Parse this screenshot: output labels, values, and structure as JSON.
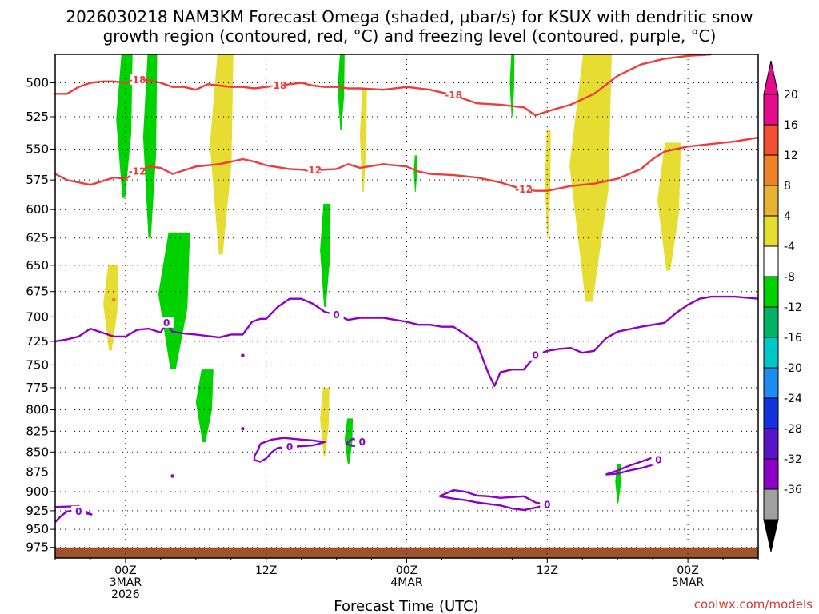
{
  "title_line1": "2026030218 NAM3KM Forecast Omega (shaded, μbar/s) for KSUX with dendritic snow",
  "title_line2": "growth region (contoured, red, °C) and freezing level (contoured, purple, °C)",
  "credit": "coolwx.com/models",
  "chart_data": {
    "type": "heatmap",
    "xlabel": "Forecast Time (UTC)",
    "x_range_hours": [
      -6,
      54
    ],
    "x_ticks": [
      {
        "hour": 0,
        "lines": [
          "00Z",
          "3MAR",
          "2026"
        ]
      },
      {
        "hour": 12,
        "lines": [
          "12Z"
        ]
      },
      {
        "hour": 24,
        "lines": [
          "00Z",
          "4MAR"
        ]
      },
      {
        "hour": 36,
        "lines": [
          "12Z"
        ]
      },
      {
        "hour": 48,
        "lines": [
          "00Z",
          "5MAR"
        ]
      }
    ],
    "y_range_mb": [
      480,
      990
    ],
    "y_log_scale": true,
    "y_ticks": [
      500,
      525,
      550,
      575,
      600,
      625,
      650,
      675,
      700,
      725,
      750,
      775,
      800,
      825,
      850,
      875,
      900,
      925,
      950,
      975
    ],
    "grid": "dotted",
    "colorbar": {
      "units": "μbar/s",
      "labels": [
        "20",
        "16",
        "12",
        "8",
        "4",
        "-4",
        "-8",
        "-12",
        "-16",
        "-20",
        "-24",
        "-28",
        "-32",
        "-36"
      ],
      "bins": [
        {
          "from": -36,
          "to": -32,
          "color": "#a0a0a0"
        },
        {
          "from": -32,
          "to": -28,
          "color": "#8c00c8"
        },
        {
          "from": -28,
          "to": -24,
          "color": "#5a14c8"
        },
        {
          "from": -24,
          "to": -20,
          "color": "#1432dc"
        },
        {
          "from": -20,
          "to": -16,
          "color": "#1e8cf0"
        },
        {
          "from": -16,
          "to": -12,
          "color": "#00c8c8"
        },
        {
          "from": -12,
          "to": -8,
          "color": "#00b464"
        },
        {
          "from": -8,
          "to": -4,
          "color": "#00d200"
        },
        {
          "from": -4,
          "to": 4,
          "color": "#ffffff"
        },
        {
          "from": 4,
          "to": 8,
          "color": "#e6dc32"
        },
        {
          "from": 8,
          "to": 12,
          "color": "#e6b432"
        },
        {
          "from": 12,
          "to": 16,
          "color": "#f08228"
        },
        {
          "from": 16,
          "to": 20,
          "color": "#f05032"
        },
        {
          "from": 20,
          "to": 24,
          "color": "#e60a8c"
        }
      ],
      "over_color": "#e60a8c",
      "under_color": "#000000"
    },
    "omega_regions": [
      {
        "sign": "negative",
        "color": "#00d200",
        "hours": [
          -0.8,
          0.6
        ],
        "mb": [
          480,
          590
        ]
      },
      {
        "sign": "negative",
        "color": "#00d200",
        "hours": [
          1.5,
          2.7
        ],
        "mb": [
          480,
          625
        ]
      },
      {
        "sign": "negative",
        "color": "#00d200",
        "hours": [
          2.8,
          5.5
        ],
        "mb": [
          620,
          755
        ]
      },
      {
        "sign": "negative",
        "color": "#00d200",
        "hours": [
          6.0,
          7.5
        ],
        "mb": [
          755,
          838
        ]
      },
      {
        "sign": "negative",
        "color": "#00d200",
        "hours": [
          16.6,
          17.5
        ],
        "mb": [
          595,
          690
        ]
      },
      {
        "sign": "negative",
        "color": "#00d200",
        "hours": [
          18.1,
          18.7
        ],
        "mb": [
          480,
          535
        ]
      },
      {
        "sign": "negative",
        "color": "#00d200",
        "hours": [
          18.7,
          19.4
        ],
        "mb": [
          810,
          865
        ]
      },
      {
        "sign": "negative",
        "color": "#00d200",
        "hours": [
          24.6,
          24.9
        ],
        "mb": [
          555,
          585
        ]
      },
      {
        "sign": "negative",
        "color": "#00d200",
        "hours": [
          32.8,
          33.2
        ],
        "mb": [
          480,
          525
        ]
      },
      {
        "sign": "negative",
        "color": "#00d200",
        "hours": [
          41.8,
          42.3
        ],
        "mb": [
          865,
          915
        ]
      },
      {
        "sign": "positive",
        "color": "#e6dc32",
        "hours": [
          -1.9,
          -0.6
        ],
        "mb": [
          650,
          735
        ]
      },
      {
        "sign": "positive",
        "color": "#e6dc32",
        "hours": [
          7.2,
          9.2
        ],
        "mb": [
          480,
          640
        ]
      },
      {
        "sign": "positive",
        "color": "#e6dc32",
        "hours": [
          16.6,
          17.4
        ],
        "mb": [
          775,
          855
        ]
      },
      {
        "sign": "positive",
        "color": "#e6dc32",
        "hours": [
          20.0,
          20.6
        ],
        "mb": [
          505,
          585
        ]
      },
      {
        "sign": "positive",
        "color": "#e6dc32",
        "hours": [
          35.8,
          36.3
        ],
        "mb": [
          535,
          625
        ]
      },
      {
        "sign": "positive",
        "color": "#e6dc32",
        "hours": [
          37.9,
          41.5
        ],
        "mb": [
          480,
          685
        ]
      },
      {
        "sign": "positive",
        "color": "#e6dc32",
        "hours": [
          45.4,
          47.4
        ],
        "mb": [
          545,
          655
        ]
      }
    ],
    "contours": [
      {
        "label": "-18",
        "color": "#ee3b3b",
        "group": "dgz",
        "points": [
          [
            -6,
            508
          ],
          [
            -5,
            508
          ],
          [
            -4,
            503
          ],
          [
            -3,
            500
          ],
          [
            -2,
            499
          ],
          [
            -1,
            499
          ],
          [
            0,
            500
          ],
          [
            1,
            498
          ],
          [
            2,
            498
          ],
          [
            3,
            500
          ],
          [
            4,
            503
          ],
          [
            5,
            503
          ],
          [
            6,
            505
          ],
          [
            7,
            501
          ],
          [
            8,
            502
          ],
          [
            9,
            503
          ],
          [
            10,
            503
          ],
          [
            11,
            504
          ],
          [
            12,
            503
          ],
          [
            13,
            502
          ],
          [
            14,
            501
          ],
          [
            15,
            500
          ],
          [
            16,
            502
          ],
          [
            17,
            503
          ],
          [
            18,
            503
          ],
          [
            19,
            504
          ],
          [
            20,
            504
          ],
          [
            22,
            505
          ],
          [
            24,
            503
          ],
          [
            26,
            505
          ],
          [
            28,
            509
          ],
          [
            30,
            515
          ],
          [
            32,
            516
          ],
          [
            34,
            518
          ],
          [
            35,
            524
          ],
          [
            36,
            521
          ],
          [
            38,
            516
          ],
          [
            40,
            508
          ],
          [
            42,
            495
          ],
          [
            44,
            487
          ],
          [
            46,
            483
          ],
          [
            48,
            481
          ],
          [
            50,
            480
          ]
        ]
      },
      {
        "label": "-12",
        "color": "#ee3b3b",
        "group": "dgz",
        "points": [
          [
            -6,
            570
          ],
          [
            -5,
            575
          ],
          [
            -4,
            577
          ],
          [
            -3,
            579
          ],
          [
            -2,
            576
          ],
          [
            -1,
            573
          ],
          [
            0,
            574
          ],
          [
            1,
            568
          ],
          [
            2,
            564
          ],
          [
            3,
            565
          ],
          [
            4,
            570
          ],
          [
            5,
            567
          ],
          [
            6,
            564
          ],
          [
            8,
            562
          ],
          [
            9,
            560
          ],
          [
            10,
            558
          ],
          [
            11,
            560
          ],
          [
            12,
            563
          ],
          [
            14,
            566
          ],
          [
            16,
            567
          ],
          [
            18,
            566
          ],
          [
            19,
            562
          ],
          [
            20,
            565
          ],
          [
            22,
            562
          ],
          [
            24,
            564
          ],
          [
            25,
            568
          ],
          [
            26,
            570
          ],
          [
            28,
            571
          ],
          [
            30,
            573
          ],
          [
            32,
            577
          ],
          [
            34,
            583
          ],
          [
            35,
            584
          ],
          [
            36,
            584
          ],
          [
            38,
            580
          ],
          [
            40,
            578
          ],
          [
            42,
            574
          ],
          [
            44,
            566
          ],
          [
            45,
            558
          ],
          [
            46,
            552
          ],
          [
            48,
            548
          ],
          [
            50,
            546
          ],
          [
            52,
            544
          ],
          [
            54,
            541
          ]
        ]
      },
      {
        "label": "0",
        "color": "#8c00c8",
        "group": "freezing",
        "points": [
          [
            -6,
            725
          ],
          [
            -5,
            723
          ],
          [
            -4,
            720
          ],
          [
            -3,
            712
          ],
          [
            -2,
            716
          ],
          [
            -1,
            720
          ],
          [
            0,
            720
          ],
          [
            1,
            713
          ],
          [
            2,
            712
          ],
          [
            3,
            716
          ],
          [
            3.5,
            706
          ],
          [
            4,
            715
          ],
          [
            5,
            717
          ],
          [
            6,
            718
          ],
          [
            8,
            721
          ],
          [
            9,
            718
          ],
          [
            10,
            718
          ],
          [
            10.8,
            705
          ],
          [
            11.5,
            702
          ],
          [
            12,
            702
          ],
          [
            13,
            690
          ],
          [
            14,
            682
          ],
          [
            15,
            682
          ],
          [
            16,
            687
          ],
          [
            17,
            695
          ],
          [
            18,
            698
          ],
          [
            19,
            703
          ],
          [
            20,
            701
          ],
          [
            22,
            701
          ],
          [
            24,
            705
          ],
          [
            25,
            708
          ],
          [
            26,
            708
          ],
          [
            27,
            710
          ],
          [
            28,
            710
          ],
          [
            29,
            718
          ],
          [
            30,
            727
          ],
          [
            31,
            760
          ],
          [
            31.5,
            773
          ],
          [
            32,
            758
          ],
          [
            33,
            755
          ],
          [
            34,
            755
          ],
          [
            35,
            740
          ],
          [
            36,
            735
          ],
          [
            37,
            733
          ],
          [
            38,
            732
          ],
          [
            39,
            737
          ],
          [
            40,
            735
          ],
          [
            41,
            722
          ],
          [
            42,
            715
          ],
          [
            44,
            710
          ],
          [
            46,
            706
          ],
          [
            47,
            696
          ],
          [
            48,
            688
          ],
          [
            49,
            682
          ],
          [
            50,
            680
          ],
          [
            52,
            680
          ],
          [
            54,
            682
          ]
        ]
      },
      {
        "label": "0",
        "color": "#8c00c8",
        "group": "freezing",
        "points": [
          [
            11.5,
            840
          ],
          [
            12.5,
            835
          ],
          [
            13.5,
            833
          ],
          [
            15,
            835
          ],
          [
            16,
            836
          ],
          [
            17,
            838
          ],
          [
            16,
            842
          ],
          [
            15,
            843
          ],
          [
            14,
            844
          ],
          [
            13,
            845
          ],
          [
            12.5,
            850
          ],
          [
            12,
            858
          ],
          [
            11.5,
            862
          ],
          [
            11,
            860
          ],
          [
            11,
            855
          ],
          [
            11.3,
            848
          ],
          [
            11.5,
            840
          ]
        ]
      },
      {
        "label": "0",
        "color": "#8c00c8",
        "group": "freezing",
        "points": [
          [
            18.8,
            840
          ],
          [
            19.4,
            834
          ],
          [
            20.2,
            838
          ],
          [
            19.5,
            843
          ],
          [
            18.8,
            840
          ]
        ]
      },
      {
        "label": "0",
        "color": "#8c00c8",
        "group": "freezing",
        "points": [
          [
            -6,
            920
          ],
          [
            -4,
            919
          ],
          [
            -3.5,
            925
          ],
          [
            -2.9,
            930
          ],
          [
            -3.5,
            928
          ],
          [
            -4,
            926
          ],
          [
            -4.5,
            925
          ],
          [
            -5,
            926
          ],
          [
            -5.5,
            932
          ],
          [
            -6,
            940
          ]
        ]
      },
      {
        "label": "0",
        "color": "#8c00c8",
        "group": "freezing",
        "points": [
          [
            26.8,
            906
          ],
          [
            28,
            898
          ],
          [
            29,
            900
          ],
          [
            30,
            905
          ],
          [
            31,
            906
          ],
          [
            32,
            908
          ],
          [
            33,
            907
          ],
          [
            34,
            906
          ],
          [
            35,
            914
          ],
          [
            36,
            917
          ],
          [
            35,
            921
          ],
          [
            34,
            924
          ],
          [
            33,
            922
          ],
          [
            32,
            918
          ],
          [
            31,
            916
          ],
          [
            30,
            914
          ],
          [
            29,
            911
          ],
          [
            28,
            909
          ],
          [
            26.8,
            906
          ]
        ]
      },
      {
        "label": "0",
        "color": "#8c00c8",
        "group": "freezing",
        "points": [
          [
            41,
            878
          ],
          [
            42,
            873
          ],
          [
            43,
            867
          ],
          [
            44,
            862
          ],
          [
            45,
            857
          ],
          [
            45.5,
            860
          ],
          [
            45,
            866
          ],
          [
            44,
            870
          ],
          [
            43,
            873
          ],
          [
            42,
            877
          ],
          [
            41,
            878
          ]
        ]
      }
    ],
    "small_marks": [
      {
        "color": "#8c00c8",
        "hour": 10.0,
        "mb": 740
      },
      {
        "color": "#8c00c8",
        "hour": 10.0,
        "mb": 822
      },
      {
        "color": "#8c00c8",
        "hour": 4.0,
        "mb": 880
      },
      {
        "color": "#e67832",
        "hour": -1.0,
        "mb": 683
      }
    ],
    "surface": {
      "color": "#a0522d",
      "mb_top": 975
    }
  }
}
